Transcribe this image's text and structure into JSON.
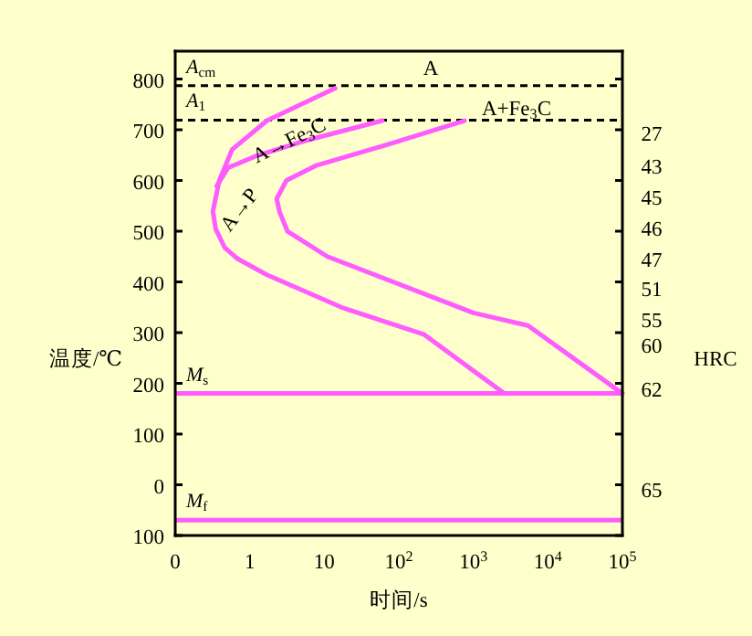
{
  "chart_data": {
    "type": "line",
    "xlabel": "时间/s",
    "ylabel": "温度/℃",
    "y2label": "HRC",
    "log": "x",
    "xlim": [
      0,
      100000
    ],
    "xticks": [
      0,
      1,
      10,
      {
        "value": 100,
        "label": "10$^{2}$"
      },
      {
        "value": 1000,
        "label": "10$^{3}$"
      },
      {
        "value": 10000,
        "label": "10$^{4}$"
      },
      {
        "value": 100000,
        "label": "10$^{5}$"
      }
    ],
    "ylim": [
      -100,
      855
    ],
    "yticks": [
      {
        "value": -100,
        "label": "100"
      },
      0,
      100,
      200,
      300,
      400,
      500,
      600,
      700,
      800
    ],
    "series": [
      {
        "color": "#ff5cff",
        "x": [
          14,
          1.7,
          0.58,
          0.39,
          0.32,
          0.35,
          0.46,
          0.68,
          1.7,
          17,
          220,
          2600
        ],
        "values": [
          782,
          718,
          661,
          600,
          539,
          504,
          468,
          446,
          414,
          350,
          296,
          180
        ]
      },
      {
        "color": "#ff5cff",
        "x": [
          60,
          5.4,
          1.2,
          0.51,
          0.36
        ],
        "values": [
          718,
          678,
          648,
          625,
          589
        ]
      },
      {
        "color": "#ff5cff",
        "x": [
          760,
          71,
          7.6,
          3.1,
          2.3,
          2.5,
          3.2,
          11,
          1000,
          5400,
          100000
        ],
        "values": [
          718,
          671,
          629,
          600,
          564,
          539,
          500,
          450,
          339,
          314,
          180
        ]
      }
    ],
    "ref_lines": [
      {
        "axis": "y",
        "value": 787,
        "label": "*A*$_{cm}$",
        "color": "#000000",
        "line_style": "dashed"
      },
      {
        "axis": "y",
        "value": 719,
        "label": "*A*$_{1}$",
        "color": "#000000",
        "line_style": "dashed"
      },
      {
        "axis": "y",
        "value": 180,
        "label": "*M*$_{s}$",
        "color": "#ff5cff",
        "line_style": "solid"
      },
      {
        "axis": "y",
        "value": -70,
        "label": "*M*$_{f}$",
        "color": "#ff5cff",
        "line_style": "solid"
      }
    ],
    "annotations": [
      "A",
      "A+Fe$_{3}$C",
      "A→Fe$_{3}$C",
      "A→P",
      "27",
      "43",
      "45",
      "46",
      "47",
      "51",
      "55",
      "60",
      "62",
      "65"
    ]
  }
}
